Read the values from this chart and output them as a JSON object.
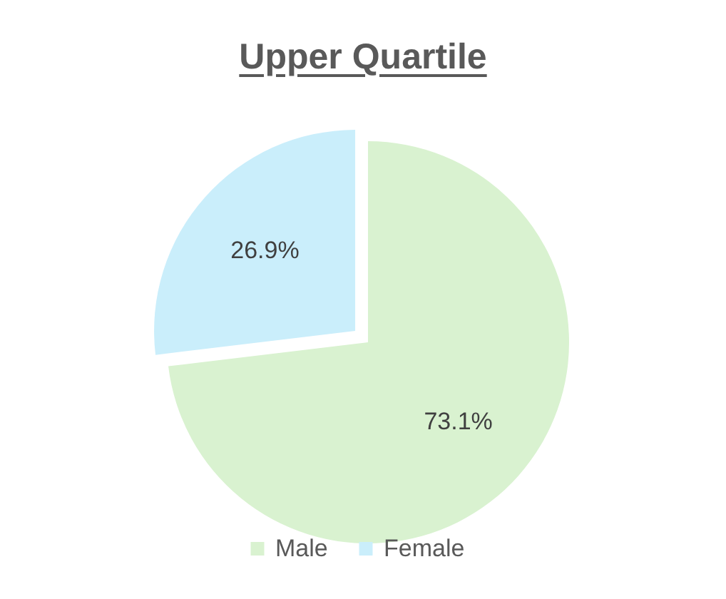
{
  "chart_data": {
    "type": "pie",
    "title": "Upper Quartile",
    "categories": [
      "Male",
      "Female"
    ],
    "values": [
      73.1,
      26.9
    ],
    "value_labels": [
      "73.1%",
      "26.9%"
    ],
    "colors": [
      "#d9f2d0",
      "#caeefb"
    ],
    "legend": "bottom"
  }
}
